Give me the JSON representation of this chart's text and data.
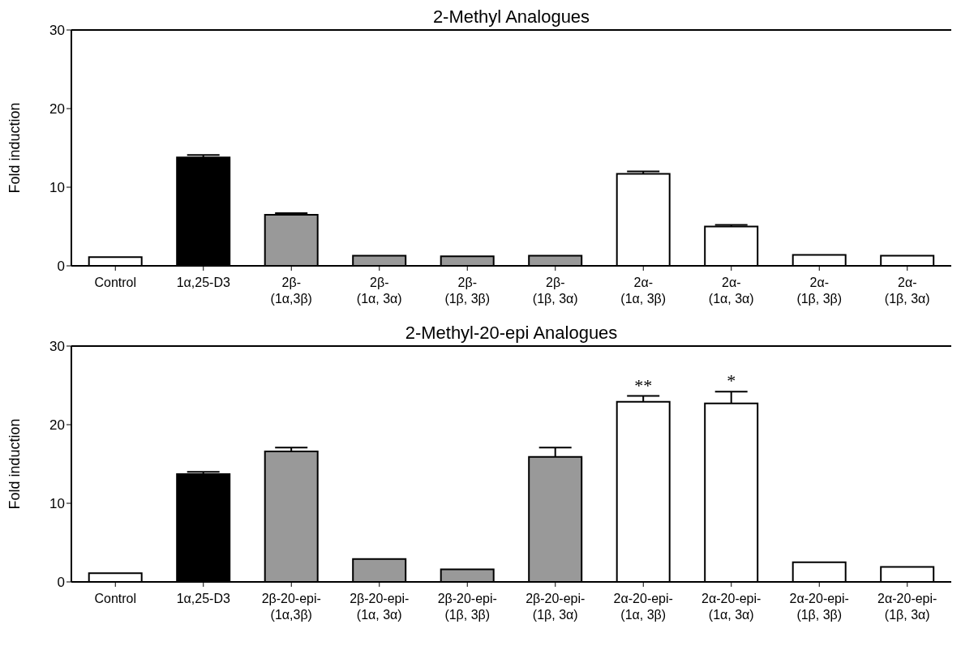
{
  "chart_data": [
    {
      "type": "bar",
      "title": "2-Methyl Analogues",
      "ylabel": "Fold induction",
      "categories": [
        "Control",
        "1α,25-D3",
        "2β-(1α,3β)",
        "2β-(1α, 3α)",
        "2β-(1β, 3β)",
        "2β-(1β, 3α)",
        "2α-(1α, 3β)",
        "2α-(1α, 3α)",
        "2α-(1β, 3β)",
        "2α-(1β, 3α)"
      ],
      "values": [
        1.1,
        13.8,
        6.5,
        1.3,
        1.2,
        1.3,
        11.7,
        5.0,
        1.4,
        1.3
      ],
      "errors": [
        null,
        [
          13.8,
          14.1
        ],
        [
          6.5,
          6.7
        ],
        null,
        null,
        null,
        [
          11.7,
          12.0
        ],
        [
          5.0,
          5.2
        ],
        null,
        null
      ],
      "colors": [
        "#ffffff",
        "#000000",
        "#999999",
        "#999999",
        "#999999",
        "#999999",
        "#ffffff",
        "#ffffff",
        "#ffffff",
        "#ffffff"
      ],
      "ylim": [
        0,
        30
      ],
      "yticks": [
        0,
        10,
        20,
        30
      ],
      "grid": false,
      "legend": false
    },
    {
      "type": "bar",
      "title": "2-Methyl-20-epi  Analogues",
      "ylabel": "Fold induction",
      "categories": [
        "Control",
        "1α,25-D3",
        "2β-20-epi-(1α,3β)",
        "2β-20-epi-(1α, 3α)",
        "2β-20-epi-(1β, 3β)",
        "2β-20-epi-(1β, 3α)",
        "2α-20-epi-(1α, 3β)",
        "2α-20-epi-(1α, 3α)",
        "2α-20-epi-(1β, 3β)",
        "2α-20-epi-(1β, 3α)"
      ],
      "values": [
        1.1,
        13.7,
        16.6,
        2.9,
        1.6,
        15.9,
        22.9,
        22.7,
        2.5,
        1.9
      ],
      "errors": [
        null,
        [
          13.7,
          14.0
        ],
        [
          16.6,
          17.1
        ],
        null,
        null,
        [
          15.9,
          17.1
        ],
        [
          22.9,
          23.65
        ],
        [
          22.7,
          24.2
        ],
        null,
        null
      ],
      "colors": [
        "#ffffff",
        "#000000",
        "#999999",
        "#999999",
        "#999999",
        "#999999",
        "#ffffff",
        "#ffffff",
        "#ffffff",
        "#ffffff"
      ],
      "annotations": [
        {
          "text": "**",
          "x": "2α-20-epi-(1α, 3β)",
          "y": 23.65
        },
        {
          "text": "*",
          "x": "2α-20-epi-(1α, 3α)",
          "y": 24.2
        }
      ],
      "ylim": [
        0,
        30
      ],
      "yticks": [
        0,
        10,
        20,
        30
      ],
      "grid": false,
      "legend": false
    }
  ]
}
